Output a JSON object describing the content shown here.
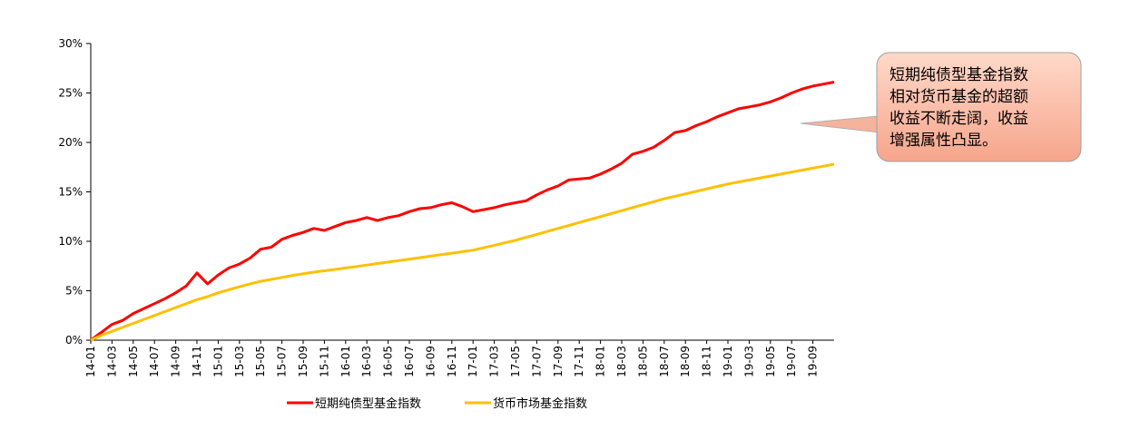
{
  "chart_data": {
    "type": "line",
    "x": [
      "14-01",
      "14-02",
      "14-03",
      "14-04",
      "14-05",
      "14-06",
      "14-07",
      "14-08",
      "14-09",
      "14-10",
      "14-11",
      "14-12",
      "15-01",
      "15-02",
      "15-03",
      "15-04",
      "15-05",
      "15-06",
      "15-07",
      "15-08",
      "15-09",
      "15-10",
      "15-11",
      "15-12",
      "16-01",
      "16-02",
      "16-03",
      "16-04",
      "16-05",
      "16-06",
      "16-07",
      "16-08",
      "16-09",
      "16-10",
      "16-11",
      "16-12",
      "17-01",
      "17-02",
      "17-03",
      "17-04",
      "17-05",
      "17-06",
      "17-07",
      "17-08",
      "17-09",
      "17-10",
      "17-11",
      "17-12",
      "18-01",
      "18-02",
      "18-03",
      "18-04",
      "18-05",
      "18-06",
      "18-07",
      "18-08",
      "18-09",
      "18-10",
      "18-11",
      "18-12",
      "19-01",
      "19-02",
      "19-03",
      "19-04",
      "19-05",
      "19-06",
      "19-07",
      "19-08",
      "19-09",
      "19-10",
      "19-11"
    ],
    "xticks": [
      "14-01",
      "14-03",
      "14-05",
      "14-07",
      "14-09",
      "14-11",
      "15-01",
      "15-03",
      "15-05",
      "15-07",
      "15-09",
      "15-11",
      "16-01",
      "16-03",
      "16-05",
      "16-07",
      "16-09",
      "16-11",
      "17-01",
      "17-03",
      "17-05",
      "17-07",
      "17-09",
      "17-11",
      "18-01",
      "18-03",
      "18-05",
      "18-07",
      "18-09",
      "18-11",
      "19-01",
      "19-03",
      "19-05",
      "19-07",
      "19-09"
    ],
    "yticks": [
      "0%",
      "5%",
      "10%",
      "15%",
      "20%",
      "25%",
      "30%"
    ],
    "ylim": [
      0,
      30
    ],
    "series": [
      {
        "name": "短期纯债型基金指数",
        "color": "#ff0000",
        "values": [
          0,
          0.8,
          1.6,
          2.0,
          2.7,
          3.2,
          3.7,
          4.2,
          4.8,
          5.5,
          6.8,
          5.7,
          6.6,
          7.3,
          7.7,
          8.3,
          9.2,
          9.4,
          10.2,
          10.6,
          10.9,
          11.3,
          11.1,
          11.5,
          11.9,
          12.1,
          12.4,
          12.1,
          12.4,
          12.6,
          13.0,
          13.3,
          13.4,
          13.7,
          13.9,
          13.5,
          13.0,
          13.2,
          13.4,
          13.7,
          13.9,
          14.1,
          14.7,
          15.2,
          15.6,
          16.2,
          16.3,
          16.4,
          16.8,
          17.3,
          17.9,
          18.8,
          19.1,
          19.5,
          20.2,
          21.0,
          21.2,
          21.7,
          22.1,
          22.6,
          23.0,
          23.4,
          23.6,
          23.8,
          24.1,
          24.5,
          25.0,
          25.4,
          25.7,
          25.9,
          26.1
        ]
      },
      {
        "name": "货币市场基金指数",
        "color": "#ffc000",
        "values": [
          0,
          0.5,
          0.9,
          1.3,
          1.7,
          2.1,
          2.5,
          2.9,
          3.3,
          3.7,
          4.1,
          4.4,
          4.8,
          5.1,
          5.4,
          5.7,
          5.95,
          6.15,
          6.35,
          6.55,
          6.72,
          6.88,
          7.02,
          7.16,
          7.3,
          7.45,
          7.6,
          7.75,
          7.9,
          8.05,
          8.2,
          8.35,
          8.5,
          8.65,
          8.8,
          8.95,
          9.1,
          9.35,
          9.6,
          9.85,
          10.1,
          10.4,
          10.7,
          11.0,
          11.3,
          11.6,
          11.9,
          12.2,
          12.5,
          12.8,
          13.1,
          13.4,
          13.7,
          14.0,
          14.3,
          14.55,
          14.8,
          15.05,
          15.3,
          15.55,
          15.8,
          16.0,
          16.2,
          16.4,
          16.6,
          16.8,
          17.0,
          17.2,
          17.4,
          17.6,
          17.8
        ]
      }
    ]
  },
  "legend": {
    "item1": "短期纯债型基金指数",
    "item2": "货币市场基金指数"
  },
  "callout": {
    "lines": [
      "短期纯债型基金指数",
      "相对货币基金的超额",
      "收益不断走阔，收益",
      "增强属性凸显。"
    ]
  }
}
